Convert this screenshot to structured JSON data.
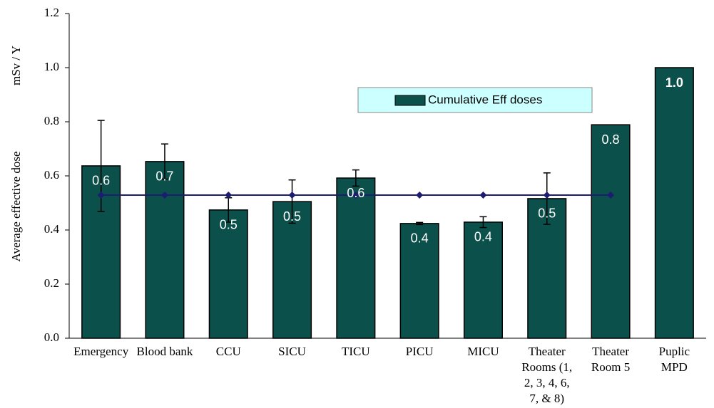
{
  "chart_data": {
    "type": "bar",
    "ylabel": "Average effective dose",
    "ylabel_unit": "mSv / Y",
    "categories": [
      "Emergency",
      "Blood bank",
      "CCU",
      "SICU",
      "TICU",
      "PICU",
      "MICU",
      "Theater Rooms (1, 2, 3, 4, 6, 7, & 8)",
      "Theater Room 5",
      "Puplic MPD"
    ],
    "series": [
      {
        "name": "Cumulative Eff doses",
        "type": "bar",
        "color": "#0c504b",
        "values": [
          0.637,
          0.653,
          0.474,
          0.505,
          0.592,
          0.424,
          0.429,
          0.516,
          0.789,
          1.0
        ],
        "errors": [
          0.168,
          0.065,
          0.045,
          0.08,
          0.03,
          0.004,
          0.02,
          0.095,
          null,
          null
        ],
        "value_labels": [
          "0.6",
          "0.7",
          "0.5",
          "0.5",
          "0.6",
          "0.4",
          "0.4",
          "0.5",
          "0.8",
          "1.0"
        ]
      },
      {
        "type": "line",
        "color": "#1c1c72",
        "values": [
          0.529,
          0.529,
          0.529,
          0.529,
          0.529,
          0.529,
          0.529,
          0.529,
          0.529,
          null
        ]
      }
    ],
    "ylim": [
      0,
      1.2
    ],
    "yticks": [
      {
        "value": 0,
        "label": "0.0"
      },
      0.2,
      0.4,
      0.6,
      0.8,
      {
        "value": 1,
        "label": "1.0"
      },
      1.2
    ],
    "legend_color": "#ccffff"
  }
}
